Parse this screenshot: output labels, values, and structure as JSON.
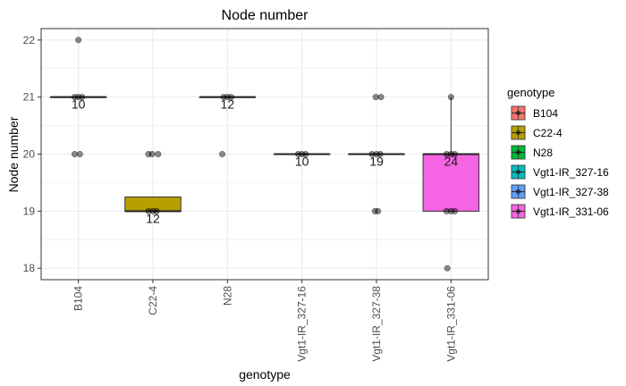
{
  "chart_data": {
    "type": "box",
    "title": "Node number",
    "xlabel": "genotype",
    "ylabel": "Node number",
    "ylim": [
      17.8,
      22.2
    ],
    "yticks": [
      18,
      19,
      20,
      21,
      22
    ],
    "grid": true,
    "legend": {
      "title": "genotype",
      "placement": "right",
      "entries": [
        "B104",
        "C22-4",
        "N28",
        "Vgt1-IR_327-16",
        "Vgt1-IR_327-38",
        "Vgt1-IR_331-06"
      ]
    },
    "categories": [
      "B104",
      "C22-4",
      "N28",
      "Vgt1-IR_327-16",
      "Vgt1-IR_327-38",
      "Vgt1-IR_331-06"
    ],
    "colors": [
      "#F8766D",
      "#B79F00",
      "#00BA38",
      "#00BFC4",
      "#619CFF",
      "#F564E3"
    ],
    "boxes": [
      {
        "category": "B104",
        "q1": 21,
        "median": 21,
        "q3": 21,
        "whisker_low": 21,
        "whisker_high": 21,
        "count_label": "10"
      },
      {
        "category": "C22-4",
        "q1": 19,
        "median": 19,
        "q3": 19.25,
        "whisker_low": 19,
        "whisker_high": 19.25,
        "count_label": "12"
      },
      {
        "category": "N28",
        "q1": 21,
        "median": 21,
        "q3": 21,
        "whisker_low": 21,
        "whisker_high": 21,
        "count_label": "12"
      },
      {
        "category": "Vgt1-IR_327-16",
        "q1": 20,
        "median": 20,
        "q3": 20,
        "whisker_low": 20,
        "whisker_high": 20,
        "count_label": "10"
      },
      {
        "category": "Vgt1-IR_327-38",
        "q1": 20,
        "median": 20,
        "q3": 20,
        "whisker_low": 20,
        "whisker_high": 20,
        "count_label": "19"
      },
      {
        "category": "Vgt1-IR_331-06",
        "q1": 19,
        "median": 20,
        "q3": 20,
        "whisker_low": 19,
        "whisker_high": 21,
        "count_label": "24"
      }
    ],
    "points": [
      {
        "category": "B104",
        "y": 22,
        "jitter": 0.0
      },
      {
        "category": "B104",
        "y": 21,
        "jitter": -0.05
      },
      {
        "category": "B104",
        "y": 21,
        "jitter": 0.0
      },
      {
        "category": "B104",
        "y": 21,
        "jitter": 0.05
      },
      {
        "category": "B104",
        "y": 20,
        "jitter": -0.05
      },
      {
        "category": "B104",
        "y": 20,
        "jitter": 0.02
      },
      {
        "category": "C22-4",
        "y": 20,
        "jitter": -0.06
      },
      {
        "category": "C22-4",
        "y": 20,
        "jitter": -0.01
      },
      {
        "category": "C22-4",
        "y": 20,
        "jitter": 0.07
      },
      {
        "category": "C22-4",
        "y": 19,
        "jitter": -0.06
      },
      {
        "category": "C22-4",
        "y": 19,
        "jitter": 0.0
      },
      {
        "category": "C22-4",
        "y": 19,
        "jitter": 0.05
      },
      {
        "category": "N28",
        "y": 21,
        "jitter": -0.05
      },
      {
        "category": "N28",
        "y": 21,
        "jitter": 0.0
      },
      {
        "category": "N28",
        "y": 21,
        "jitter": 0.05
      },
      {
        "category": "N28",
        "y": 20,
        "jitter": -0.07
      },
      {
        "category": "Vgt1-IR_327-16",
        "y": 20,
        "jitter": -0.05
      },
      {
        "category": "Vgt1-IR_327-16",
        "y": 20,
        "jitter": 0.0
      },
      {
        "category": "Vgt1-IR_327-16",
        "y": 20,
        "jitter": 0.05
      },
      {
        "category": "Vgt1-IR_327-38",
        "y": 21,
        "jitter": -0.01
      },
      {
        "category": "Vgt1-IR_327-38",
        "y": 21,
        "jitter": 0.06
      },
      {
        "category": "Vgt1-IR_327-38",
        "y": 20,
        "jitter": -0.06
      },
      {
        "category": "Vgt1-IR_327-38",
        "y": 20,
        "jitter": 0.0
      },
      {
        "category": "Vgt1-IR_327-38",
        "y": 20,
        "jitter": 0.05
      },
      {
        "category": "Vgt1-IR_327-38",
        "y": 19,
        "jitter": -0.02
      },
      {
        "category": "Vgt1-IR_327-38",
        "y": 19,
        "jitter": 0.02
      },
      {
        "category": "Vgt1-IR_331-06",
        "y": 21,
        "jitter": 0.0
      },
      {
        "category": "Vgt1-IR_331-06",
        "y": 20,
        "jitter": -0.06
      },
      {
        "category": "Vgt1-IR_331-06",
        "y": 20,
        "jitter": 0.0
      },
      {
        "category": "Vgt1-IR_331-06",
        "y": 20,
        "jitter": 0.05
      },
      {
        "category": "Vgt1-IR_331-06",
        "y": 19,
        "jitter": -0.06
      },
      {
        "category": "Vgt1-IR_331-06",
        "y": 19,
        "jitter": 0.0
      },
      {
        "category": "Vgt1-IR_331-06",
        "y": 19,
        "jitter": 0.05
      },
      {
        "category": "Vgt1-IR_331-06",
        "y": 18,
        "jitter": -0.05
      }
    ]
  }
}
